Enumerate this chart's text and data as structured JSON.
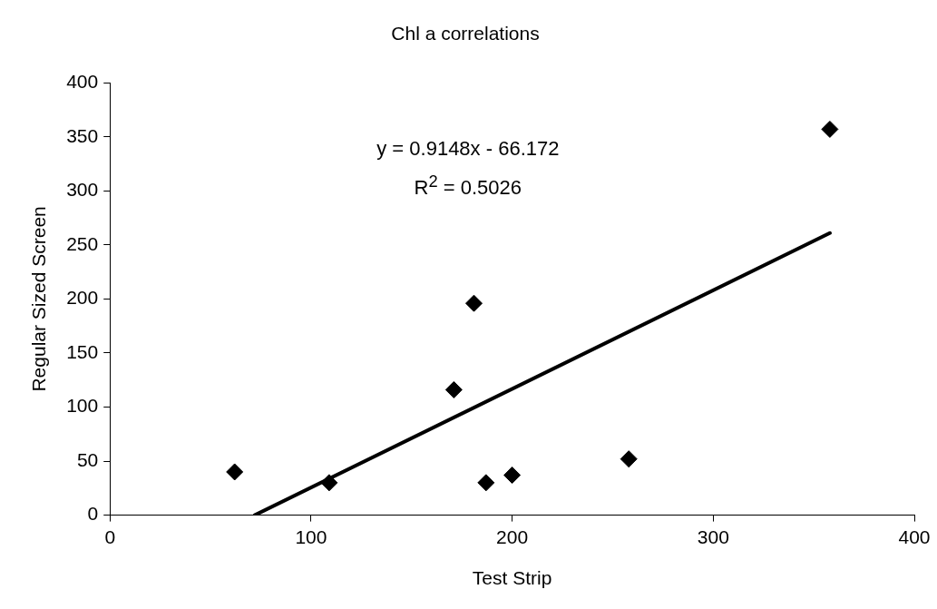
{
  "chart_data": {
    "type": "scatter",
    "title": "Chl a correlations",
    "xlabel": "Test Strip",
    "ylabel": "Regular Sized Screen",
    "xlim": [
      0,
      400
    ],
    "xticks": [
      0,
      100,
      200,
      300,
      400
    ],
    "ylim": [
      0,
      400
    ],
    "yticks": [
      0,
      50,
      100,
      150,
      200,
      250,
      300,
      350,
      400
    ],
    "grid": false,
    "legend": false,
    "marker": "diamond",
    "series": [
      {
        "color": "#000000",
        "x": [
          62,
          109,
          171,
          181,
          187,
          200,
          258,
          358
        ],
        "values": [
          40,
          30,
          116,
          196,
          30,
          37,
          52,
          357
        ]
      },
      {
        "type": "line",
        "marker": "none",
        "color": "#000000",
        "x": [
          72,
          358
        ],
        "values": [
          0,
          261
        ]
      }
    ],
    "annotations": [
      "y = 0.9148x - 66.172",
      "R$^{2}$ = 0.5026"
    ]
  }
}
